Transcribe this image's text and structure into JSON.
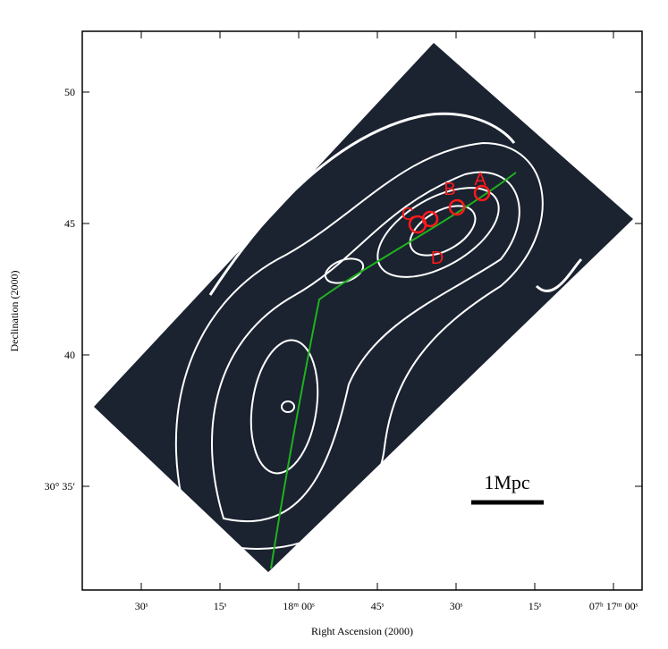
{
  "figure": {
    "x_axis": {
      "title": "Right Ascension (2000)",
      "ticks": [
        "30ˢ",
        "15ˢ",
        "18ᵐ 00ˢ",
        "45ˢ",
        "30ˢ",
        "15ˢ",
        "07ʰ 17ᵐ 00ˢ"
      ]
    },
    "y_axis": {
      "title": "Declination (2000)",
      "ticks": [
        "50",
        "45",
        "40",
        "30° 35′"
      ]
    },
    "labels": [
      "A",
      "B",
      "C",
      "D"
    ],
    "scale_bar": "1Mpc"
  }
}
